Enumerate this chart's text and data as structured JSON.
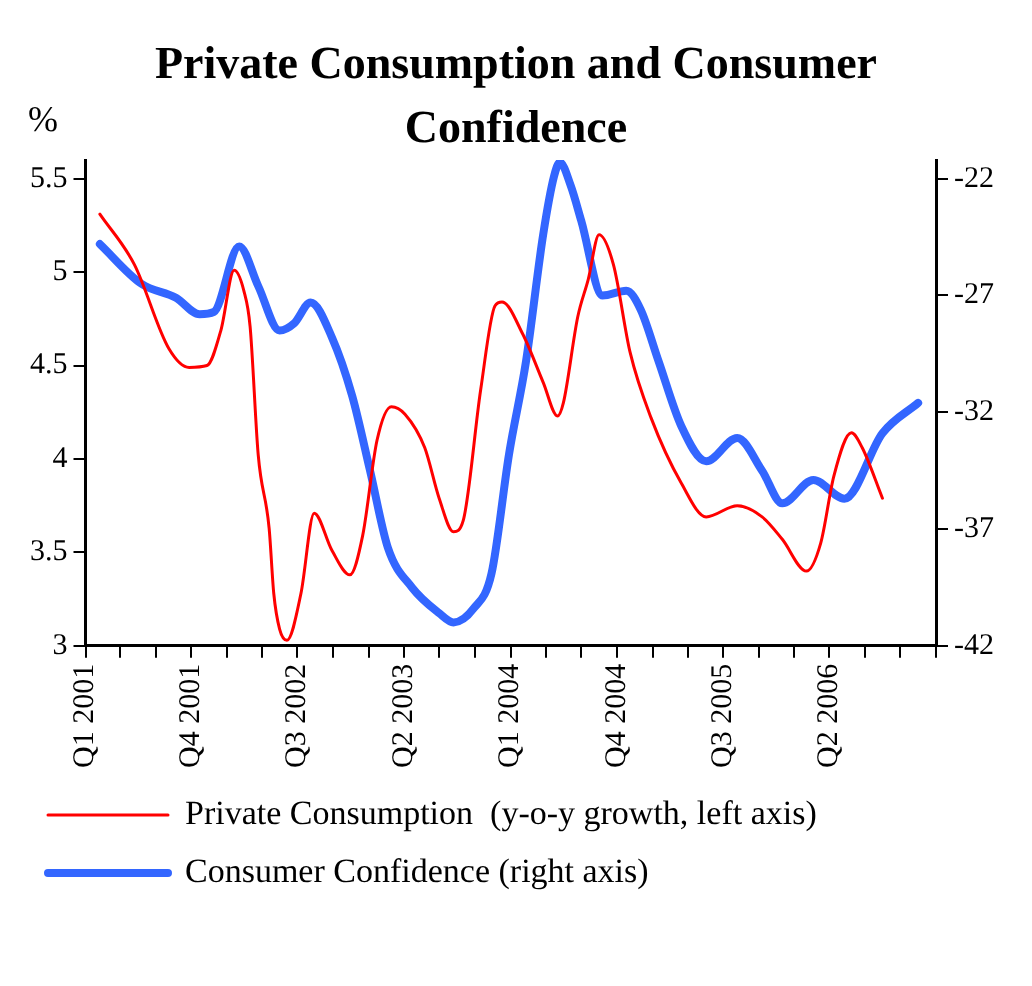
{
  "chart_data": {
    "type": "line",
    "title": "Private Consumption and Consumer Confidence",
    "ylabel": "%",
    "xlim": [
      "2001-01-01",
      "2007-01-01"
    ],
    "xticks": [
      {
        "value": "2001-01-01",
        "label": "Q1 2001"
      },
      {
        "value": "2001-04-01",
        "label": null
      },
      {
        "value": "2001-07-01",
        "label": null
      },
      {
        "value": "2001-10-01",
        "label": "Q4 2001"
      },
      {
        "value": "2002-01-01",
        "label": null
      },
      {
        "value": "2002-04-01",
        "label": null
      },
      {
        "value": "2002-07-01",
        "label": "Q3 2002"
      },
      {
        "value": "2002-10-01",
        "label": null
      },
      {
        "value": "2003-01-01",
        "label": null
      },
      {
        "value": "2003-04-01",
        "label": "Q2 2003"
      },
      {
        "value": "2003-07-01",
        "label": null
      },
      {
        "value": "2003-10-01",
        "label": null
      },
      {
        "value": "2004-01-01",
        "label": "Q1 2004"
      },
      {
        "value": "2004-04-01",
        "label": null
      },
      {
        "value": "2004-07-01",
        "label": null
      },
      {
        "value": "2004-10-01",
        "label": "Q4 2004"
      },
      {
        "value": "2005-01-01",
        "label": null
      },
      {
        "value": "2005-04-01",
        "label": null
      },
      {
        "value": "2005-07-01",
        "label": "Q3 2005"
      },
      {
        "value": "2005-10-01",
        "label": null
      },
      {
        "value": "2006-01-01",
        "label": null
      },
      {
        "value": "2006-04-01",
        "label": "Q2 2006"
      },
      {
        "value": "2006-07-01",
        "label": null
      },
      {
        "value": "2006-10-01",
        "label": null
      },
      {
        "value": "2007-01-01",
        "label": null
      }
    ],
    "ylim": [
      3,
      5.6
    ],
    "yticks": [
      3,
      3.5,
      4,
      4.5,
      5,
      5.5
    ],
    "y2lim": [
      -42,
      -21.2
    ],
    "y2ticks": [
      -42,
      -37,
      -32,
      -27,
      -22
    ],
    "grid": false,
    "legend": "bottom",
    "marker": "none",
    "line_style": "solid",
    "series": [
      {
        "name": "Private Consumption  (y-o-y growth, left axis)",
        "color": "#ff0000",
        "axis": "y",
        "x": [
          "2001-02-07",
          "2001-05-07",
          "2001-08-04",
          "2001-09-25",
          "2001-11-10",
          "2001-12-16",
          "2002-01-19",
          "2002-02-13",
          "2002-03-01",
          "2002-03-22",
          "2002-04-19",
          "2002-05-01",
          "2002-05-16",
          "2002-06-04",
          "2002-07-10",
          "2002-08-13",
          "2002-09-28",
          "2002-11-13",
          "2002-12-16",
          "2003-01-22",
          "2003-02-28",
          "2003-04-04",
          "2003-05-25",
          "2003-07-01",
          "2003-08-07",
          "2003-09-01",
          "2003-10-16",
          "2003-11-22",
          "2003-12-10",
          "2004-02-01",
          "2004-03-25",
          "2004-05-01",
          "2004-05-16",
          "2004-06-22",
          "2004-07-19",
          "2004-08-16",
          "2004-09-22",
          "2004-11-04",
          "2004-12-28",
          "2005-03-16",
          "2005-05-19",
          "2005-08-07",
          "2005-10-10",
          "2005-12-01",
          "2006-02-01",
          "2006-03-10",
          "2006-04-13",
          "2006-05-28",
          "2006-06-25",
          "2006-08-16"
        ],
        "values": [
          5.31,
          5.04,
          4.59,
          4.49,
          4.5,
          4.69,
          5.01,
          4.9,
          4.71,
          4.02,
          3.63,
          3.28,
          3.09,
          3.03,
          3.28,
          3.71,
          3.51,
          3.38,
          3.59,
          4.1,
          4.28,
          4.24,
          4.06,
          3.79,
          3.61,
          3.67,
          4.37,
          4.82,
          4.84,
          4.67,
          4.41,
          4.23,
          4.3,
          4.76,
          4.96,
          5.2,
          5.04,
          4.57,
          4.22,
          3.87,
          3.69,
          3.75,
          3.69,
          3.57,
          3.4,
          3.55,
          3.91,
          4.14,
          4.06,
          3.79
        ]
      },
      {
        "name": "Consumer Confidence (right axis)",
        "color": "#3366ff",
        "axis": "y2",
        "x": [
          "2001-02-07",
          "2001-05-25",
          "2001-08-22",
          "2001-10-22",
          "2001-11-28",
          "2002-02-01",
          "2002-03-22",
          "2002-05-16",
          "2002-06-22",
          "2002-08-04",
          "2002-09-28",
          "2002-11-19",
          "2003-01-04",
          "2003-02-19",
          "2003-04-22",
          "2003-07-01",
          "2003-08-07",
          "2003-09-28",
          "2003-11-13",
          "2003-12-28",
          "2004-02-10",
          "2004-03-25",
          "2004-04-22",
          "2004-05-07",
          "2004-06-04",
          "2004-07-01",
          "2004-08-25",
          "2004-10-25",
          "2004-12-01",
          "2005-01-16",
          "2005-03-16",
          "2005-05-19",
          "2005-08-07",
          "2005-10-10",
          "2005-12-01",
          "2006-02-19",
          "2006-05-10",
          "2006-08-16",
          "2006-11-16"
        ],
        "values": [
          -24.8,
          -26.5,
          -27.1,
          -27.8,
          -27.7,
          -24.9,
          -26.6,
          -28.5,
          -28.2,
          -27.3,
          -28.8,
          -31.3,
          -34.5,
          -37.8,
          -39.5,
          -40.6,
          -41.0,
          -40.4,
          -38.9,
          -33.8,
          -29.8,
          -24.4,
          -21.9,
          -21.3,
          -22.3,
          -23.8,
          -27.0,
          -26.8,
          -27.6,
          -29.8,
          -32.6,
          -34.1,
          -33.1,
          -34.5,
          -35.9,
          -34.9,
          -35.7,
          -32.9,
          -31.6
        ]
      }
    ]
  }
}
